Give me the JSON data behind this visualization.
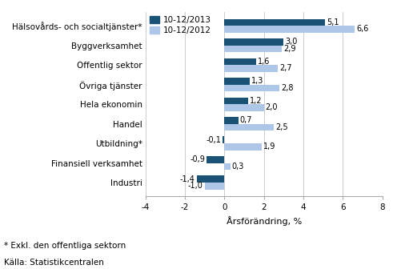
{
  "categories": [
    "Industri",
    "Finansiell verksamhet",
    "Utbildning*",
    "Handel",
    "Hela ekonomin",
    "Övriga tjänster",
    "Offentlig sektor",
    "Byggverksamhet",
    "Hälsovårds- och socialtjänster*"
  ],
  "values_2013": [
    -1.4,
    -0.9,
    -0.1,
    0.7,
    1.2,
    1.3,
    1.6,
    3.0,
    5.1
  ],
  "values_2012": [
    -1.0,
    0.3,
    1.9,
    2.5,
    2.0,
    2.8,
    2.7,
    2.9,
    6.6
  ],
  "color_2013": "#1a5276",
  "color_2012": "#aec6e8",
  "legend_2013": "10-12/2013",
  "legend_2012": "10-12/2012",
  "xlabel": "Årsförändring, %",
  "xlim": [
    -4,
    8
  ],
  "xticks": [
    -4,
    -2,
    0,
    2,
    4,
    6,
    8
  ],
  "footnote1": "* Exkl. den offentliga sektorn",
  "footnote2": "Källa: Statistikcentralen",
  "background_color": "#ffffff",
  "bar_height": 0.35,
  "label_fontsize": 7.0,
  "tick_fontsize": 7.5,
  "legend_fontsize": 7.5,
  "xlabel_fontsize": 8,
  "footnote_fontsize": 7.5
}
